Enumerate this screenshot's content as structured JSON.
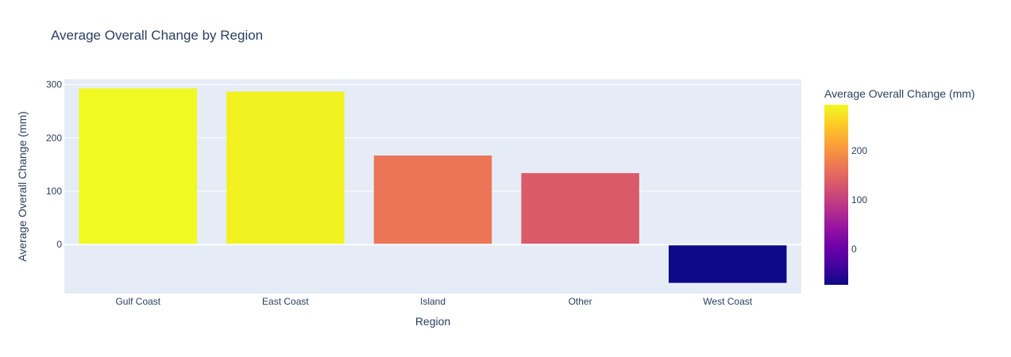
{
  "chart_data": {
    "type": "bar",
    "title": "Average Overall Change by Region",
    "xlabel": "Region",
    "ylabel": "Average Overall Change (mm)",
    "categories": [
      "Gulf Coast",
      "East Coast",
      "Island",
      "Other",
      "West Coast"
    ],
    "values": [
      293,
      287,
      167,
      134,
      -72
    ],
    "ylim": [
      -92,
      310
    ],
    "yticks": [
      0,
      100,
      200,
      300
    ],
    "grid": true,
    "colorbar": {
      "title": "Average Overall Change (mm)",
      "range": [
        -72,
        293
      ],
      "ticks": [
        0,
        100,
        200
      ]
    },
    "colors": {
      "plot_bg": "#e5ecf6",
      "text": "#2a3f5f",
      "scale": [
        "#0d0887",
        "#46039f",
        "#7201a8",
        "#9c179e",
        "#bd3786",
        "#d8576b",
        "#ed7953",
        "#fb9f3a",
        "#fdca26",
        "#f0f921"
      ]
    }
  }
}
